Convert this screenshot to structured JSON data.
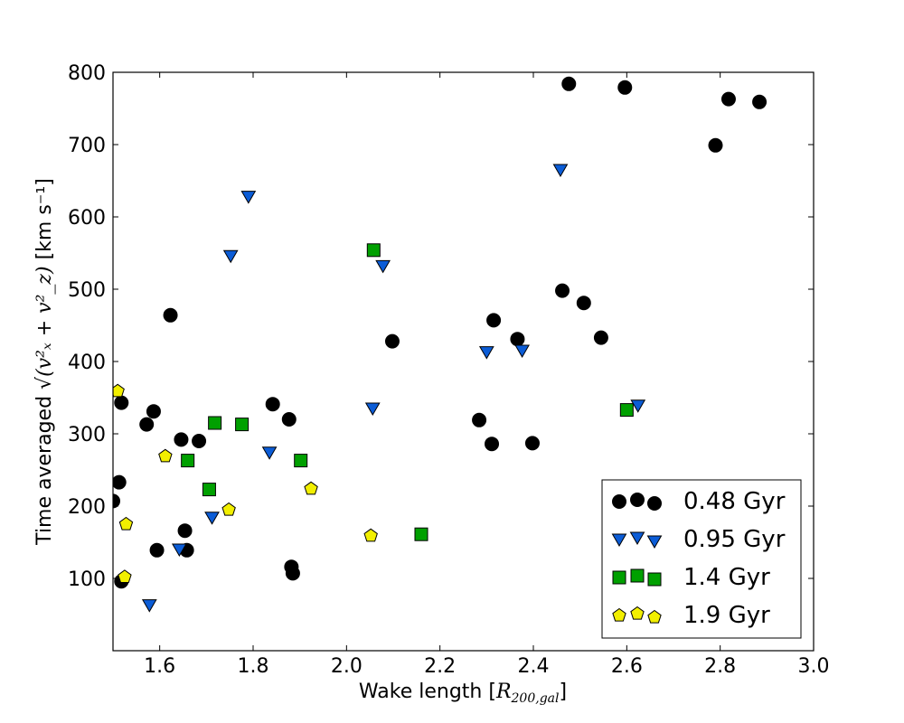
{
  "chart_data": {
    "type": "scatter",
    "title": "",
    "xlabel": "Wake length [",
    "xlabel_math": "R",
    "xlabel_sub": "200,gal",
    "xlabel_close": "]",
    "ylabel": "Time averaged",
    "ylabel_math": "√(v²ₓ + v²_z)",
    "ylabel_units": "[km s⁻¹]",
    "xlim": [
      1.5,
      3.0
    ],
    "ylim": [
      0,
      800
    ],
    "xticks": [
      "1.6",
      "1.8",
      "2.0",
      "2.2",
      "2.4",
      "2.6",
      "2.8",
      "3.0"
    ],
    "xtick_values": [
      1.6,
      1.8,
      2.0,
      2.2,
      2.4,
      2.6,
      2.8,
      3.0
    ],
    "yticks": [
      "100",
      "200",
      "300",
      "400",
      "500",
      "600",
      "700",
      "800"
    ],
    "ytick_values": [
      100,
      200,
      300,
      400,
      500,
      600,
      700,
      800
    ],
    "legend_position": "lower-right",
    "series": [
      {
        "name": "0.48 Gyr",
        "marker": "circle",
        "color": "#000000",
        "x": [
          1.5,
          1.513,
          1.518,
          1.518,
          1.572,
          1.587,
          1.594,
          1.623,
          1.646,
          1.654,
          1.658,
          1.684,
          1.842,
          1.877,
          1.882,
          1.885,
          2.098,
          2.284,
          2.311,
          2.315,
          2.366,
          2.398,
          2.462,
          2.476,
          2.508,
          2.545,
          2.596,
          2.79,
          2.818,
          2.884
        ],
        "y": [
          207,
          233,
          343,
          96,
          313,
          331,
          139,
          464,
          292,
          166,
          139,
          290,
          341,
          320,
          116,
          107,
          428,
          319,
          286,
          457,
          431,
          287,
          498,
          784,
          481,
          433,
          779,
          699,
          763,
          759
        ]
      },
      {
        "name": "0.95 Gyr",
        "marker": "triangle-down",
        "color": "#0b5cd6",
        "x": [
          1.578,
          1.642,
          1.712,
          1.752,
          1.79,
          1.835,
          2.056,
          2.078,
          2.3,
          2.376,
          2.458,
          2.624
        ],
        "y": [
          63,
          140,
          184,
          546,
          628,
          274,
          335,
          532,
          413,
          415,
          665,
          339
        ]
      },
      {
        "name": "1.4 Gyr",
        "marker": "square",
        "color": "#00a000",
        "x": [
          1.66,
          1.706,
          1.718,
          1.776,
          1.902,
          2.058,
          2.16,
          2.6
        ],
        "y": [
          263,
          223,
          315,
          313,
          263,
          554,
          161,
          333
        ]
      },
      {
        "name": "1.9 Gyr",
        "marker": "pentagon",
        "color": "#f2ef00",
        "x": [
          1.51,
          1.525,
          1.528,
          1.612,
          1.748,
          1.924,
          2.052
        ],
        "y": [
          359,
          102,
          175,
          269,
          195,
          224,
          159
        ]
      }
    ]
  }
}
